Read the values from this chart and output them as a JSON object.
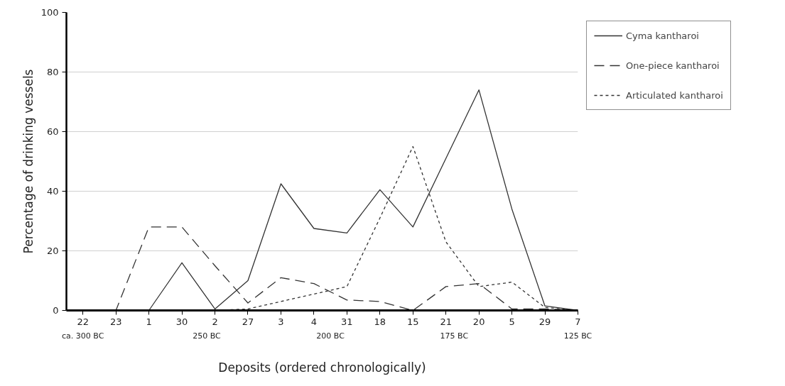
{
  "chart_data": {
    "type": "line",
    "xlabel": "Deposits (ordered chronologically)",
    "ylabel": "Percentage of drinking vessels",
    "categories": [
      "22",
      "23",
      "1",
      "30",
      "2",
      "27",
      "3",
      "4",
      "31",
      "18",
      "15",
      "21",
      "20",
      "5",
      "29",
      "7"
    ],
    "ylim": [
      0,
      100
    ],
    "yticks": [
      0,
      20,
      40,
      60,
      80,
      100
    ],
    "grid": "y",
    "legend": "right",
    "marker": "none",
    "series": [
      {
        "name": "Cyma kantharoi",
        "color": "#333333",
        "line_style": "solid",
        "values": [
          0,
          0,
          0,
          16,
          0.5,
          10,
          42.5,
          27.5,
          26,
          40.5,
          28,
          51,
          74,
          34,
          1.5,
          0
        ]
      },
      {
        "name": "One-piece kantharoi",
        "color": "#333333",
        "line_style": "dashed",
        "values": [
          0,
          0,
          28,
          28,
          15,
          2.5,
          11,
          9,
          3.5,
          3,
          0,
          8,
          9,
          0.5,
          0.5,
          0
        ]
      },
      {
        "name": "Articulated kantharoi",
        "color": "#333333",
        "line_style": "dotted",
        "values": [
          0,
          0,
          0,
          0,
          0,
          0.5,
          3,
          5.5,
          8,
          31,
          55,
          23,
          8,
          9.5,
          1,
          0
        ]
      }
    ],
    "annotations": [
      "ca. 300 BC",
      "250 BC",
      "200 BC",
      "175 BC",
      "125 BC"
    ]
  }
}
